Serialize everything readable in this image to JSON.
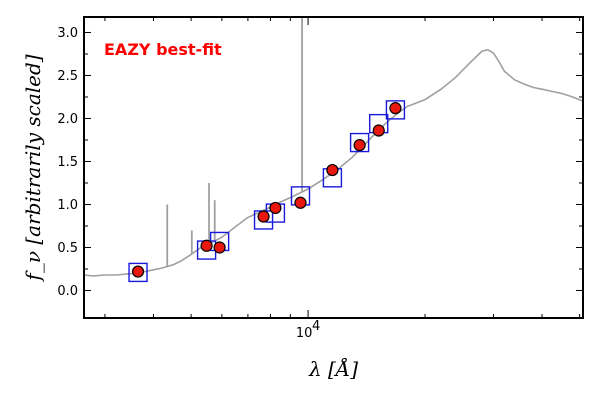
{
  "chart_data": {
    "type": "scatter",
    "title": "",
    "xlabel": "λ [Å]",
    "ylabel": "f_ν [arbitrarily scaled]",
    "xscale": "log",
    "xlim": [
      2650,
      51000
    ],
    "ylim": [
      -0.32,
      3.18
    ],
    "annotation": "EAZY best-fit",
    "colors": {
      "annotation": "#ff0000",
      "sed": "#a0a0a0",
      "model_box": "#1a1adc",
      "obs_fill": "#e8180f",
      "obs_edge": "#000000",
      "axes": "#000000"
    },
    "x_ticks": [
      {
        "value": 10000,
        "label": "10",
        "exponent": "4"
      }
    ],
    "y_ticks": [
      {
        "value": 0.0,
        "label": "0.0"
      },
      {
        "value": 0.5,
        "label": "0.5"
      },
      {
        "value": 1.0,
        "label": "1.0"
      },
      {
        "value": 1.5,
        "label": "1.5"
      },
      {
        "value": 2.0,
        "label": "2.0"
      },
      {
        "value": 2.5,
        "label": "2.5"
      },
      {
        "value": 3.0,
        "label": "3.0"
      }
    ],
    "observed": {
      "x": [
        3650,
        5480,
        5920,
        7680,
        8240,
        9560,
        11550,
        13570,
        15200,
        16780
      ],
      "y": [
        0.22,
        0.52,
        0.5,
        0.86,
        0.96,
        1.02,
        1.4,
        1.69,
        1.86,
        2.12
      ]
    },
    "model": {
      "x": [
        3650,
        5480,
        5920,
        7680,
        8240,
        9560,
        11550,
        13570,
        15200,
        16780
      ],
      "y": [
        0.21,
        0.47,
        0.57,
        0.82,
        0.9,
        1.1,
        1.31,
        1.72,
        1.94,
        2.1
      ]
    },
    "sed": {
      "x": [
        2650,
        2800,
        3000,
        3200,
        3400,
        3600,
        3800,
        4000,
        4200,
        4500,
        4700,
        5000,
        5300,
        5600,
        6000,
        6500,
        7000,
        7500,
        8000,
        8500,
        9000,
        10000,
        11000,
        12000,
        13000,
        14000,
        15000,
        16000,
        17000,
        18000,
        20000,
        22000,
        24000,
        26000,
        28000,
        29000,
        30000,
        31000,
        32000,
        34000,
        36000,
        38000,
        40000,
        42000,
        45000,
        48000,
        51000
      ],
      "y": [
        0.18,
        0.17,
        0.18,
        0.18,
        0.19,
        0.2,
        0.22,
        0.24,
        0.26,
        0.3,
        0.34,
        0.42,
        0.5,
        0.55,
        0.62,
        0.74,
        0.85,
        0.91,
        0.97,
        1.03,
        1.08,
        1.18,
        1.3,
        1.42,
        1.55,
        1.7,
        1.84,
        1.96,
        2.06,
        2.14,
        2.22,
        2.34,
        2.48,
        2.64,
        2.78,
        2.8,
        2.76,
        2.66,
        2.55,
        2.45,
        2.4,
        2.36,
        2.34,
        2.32,
        2.29,
        2.25,
        2.2
      ]
    },
    "emission_lines": [
      {
        "x": 4340,
        "y": 1.0
      },
      {
        "x": 5020,
        "y": 0.7
      },
      {
        "x": 5560,
        "y": 1.25
      },
      {
        "x": 5750,
        "y": 1.05
      },
      {
        "x": 9650,
        "y": 3.18
      }
    ]
  }
}
